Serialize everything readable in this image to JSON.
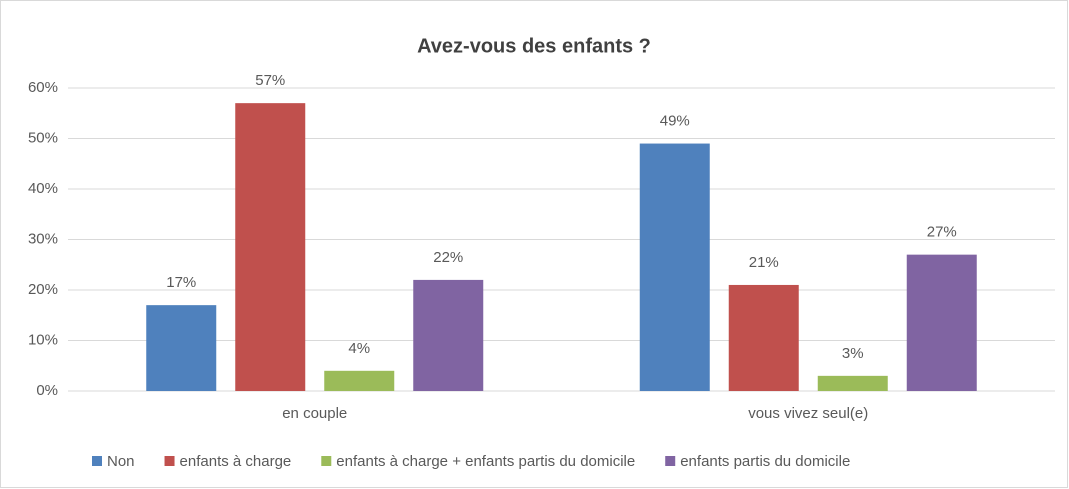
{
  "chart_data": {
    "type": "bar",
    "title": "Avez-vous des enfants ?",
    "categories": [
      "en couple",
      "vous vivez seul(e)"
    ],
    "series": [
      {
        "name": "Non",
        "color": "#4f81bd",
        "values": [
          17,
          49
        ],
        "value_labels": [
          "17%",
          "49%"
        ]
      },
      {
        "name": "enfants à charge",
        "color": "#c0504d",
        "values": [
          57,
          21
        ],
        "value_labels": [
          "57%",
          "21%"
        ]
      },
      {
        "name": "enfants à charge + enfants partis du domicile",
        "color": "#9bbb59",
        "values": [
          4,
          3
        ],
        "value_labels": [
          "4%",
          "3%"
        ]
      },
      {
        "name": "enfants partis du domicile",
        "color": "#8064a2",
        "values": [
          22,
          27
        ],
        "value_labels": [
          "22%",
          "27%"
        ]
      }
    ],
    "ylim": [
      0,
      60
    ],
    "yticks": [
      {
        "value": 0,
        "label": "0%"
      },
      {
        "value": 10,
        "label": "10%"
      },
      {
        "value": 20,
        "label": "20%"
      },
      {
        "value": 30,
        "label": "30%"
      },
      {
        "value": 40,
        "label": "40%"
      },
      {
        "value": 50,
        "label": "50%"
      },
      {
        "value": 60,
        "label": "60%"
      }
    ],
    "grid": true,
    "legend": "bottom"
  }
}
